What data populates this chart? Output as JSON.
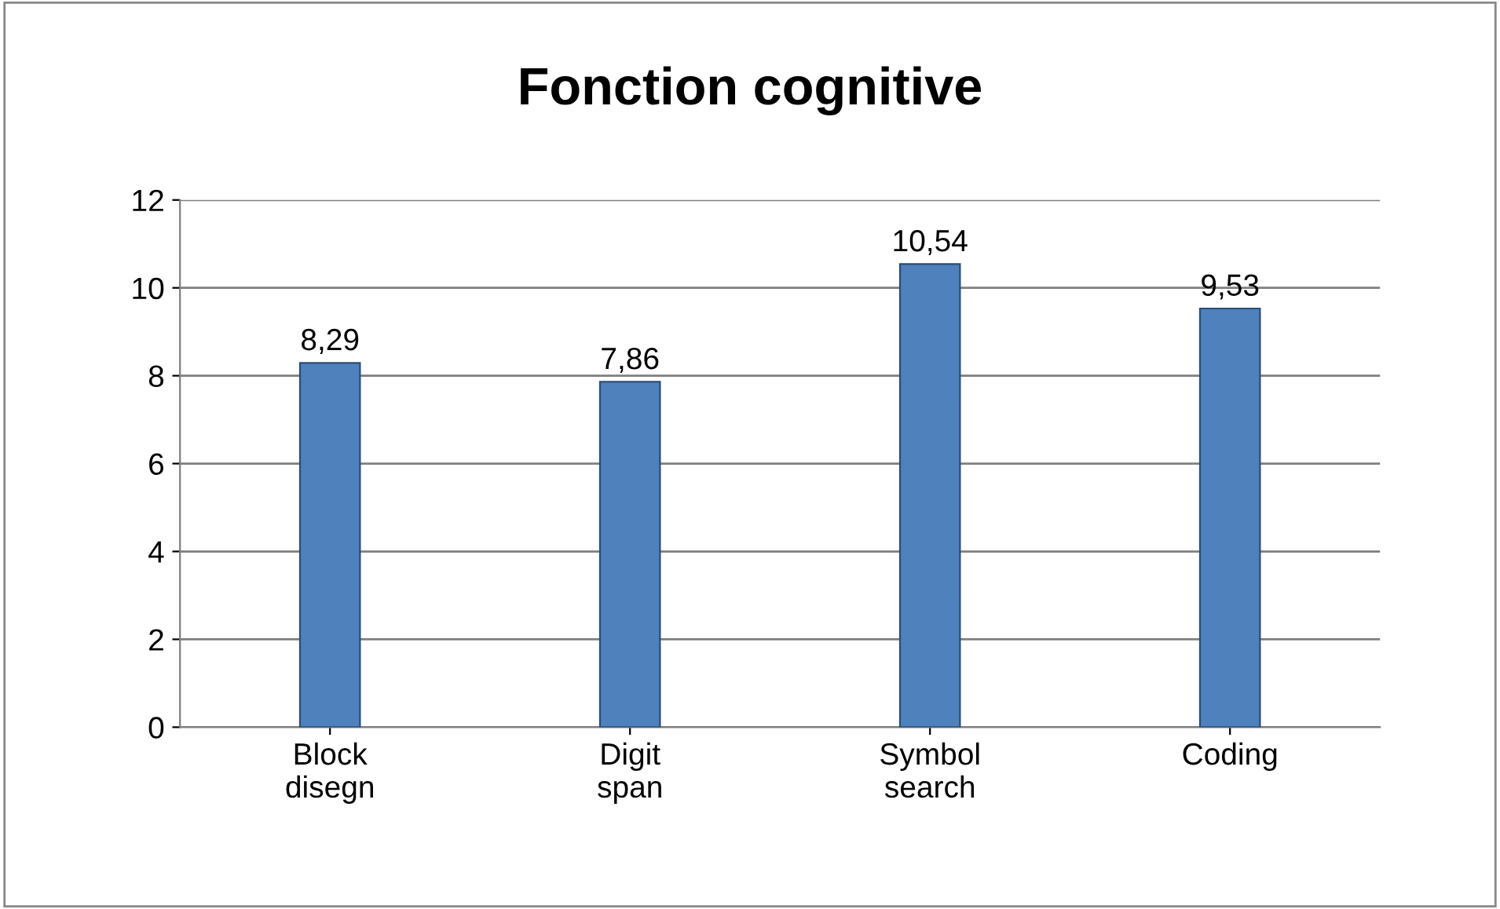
{
  "chart_data": {
    "type": "bar",
    "title": "Fonction cognitive",
    "categories": [
      "Block\ndisegn",
      "Digit\nspan",
      "Symbol\nsearch",
      "Coding"
    ],
    "values": [
      8.29,
      7.86,
      10.54,
      9.53
    ],
    "value_labels": [
      "8,29",
      "7,86",
      "10,54",
      "9,53"
    ],
    "color": "#4f81bd",
    "ylim": [
      0,
      12
    ],
    "yticks": [
      0,
      2,
      4,
      6,
      8,
      10,
      12
    ],
    "grid": "y"
  }
}
